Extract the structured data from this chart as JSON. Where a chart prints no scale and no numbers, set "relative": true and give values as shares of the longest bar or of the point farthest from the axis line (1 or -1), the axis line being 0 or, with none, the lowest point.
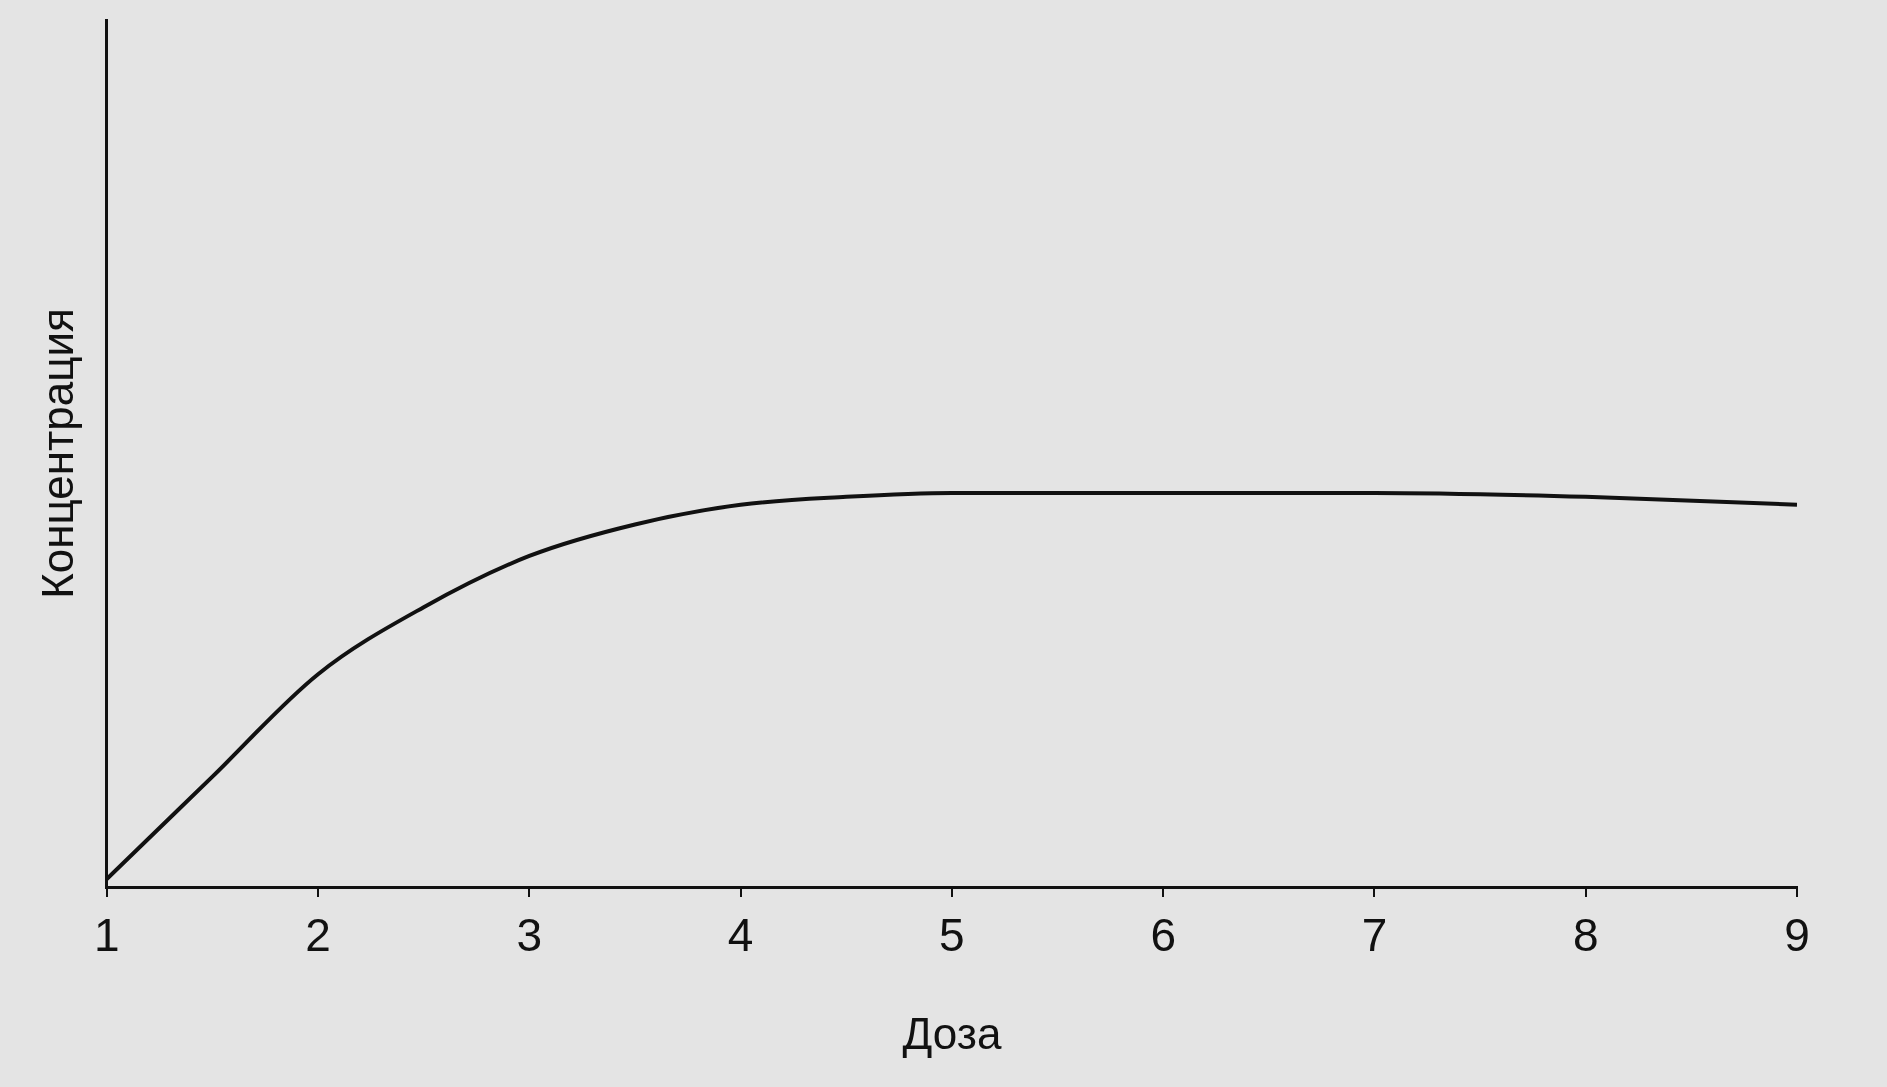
{
  "chart_data": {
    "type": "line",
    "relative": true,
    "xlabel": "Доза",
    "ylabel": "Концентрация",
    "xlim": [
      1,
      9
    ],
    "xticks": [
      1,
      2,
      3,
      4,
      5,
      6,
      7,
      8,
      9
    ],
    "grid": false,
    "legend": false,
    "marker": "none",
    "line_style": "solid",
    "series": [
      {
        "color": "#111111",
        "x": [
          1,
          1.5,
          2,
          2.5,
          3,
          3.5,
          4,
          4.5,
          5,
          6,
          7,
          8,
          9
        ],
        "values": [
          0.02,
          0.28,
          0.54,
          0.71,
          0.84,
          0.92,
          0.97,
          0.99,
          1,
          1,
          1,
          0.99,
          0.97
        ]
      }
    ]
  }
}
